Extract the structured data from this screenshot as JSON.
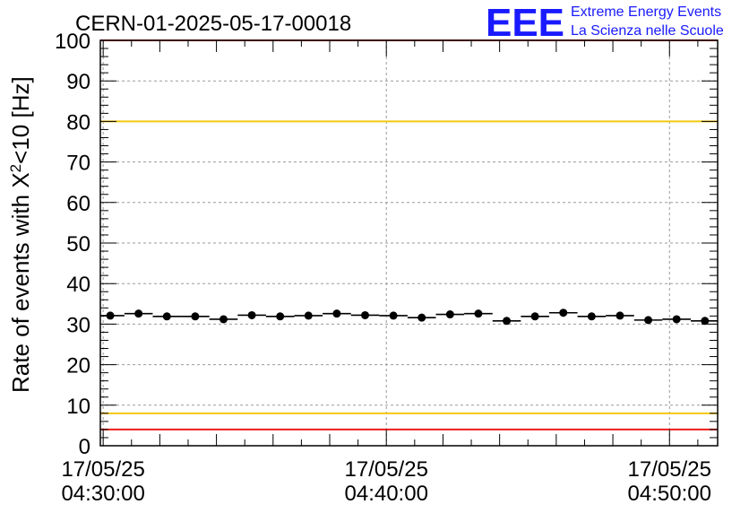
{
  "chart_data": {
    "type": "scatter",
    "title": "CERN-01-2025-05-17-00018",
    "ylabel_main": "Rate of events with X",
    "ylabel_sup": "2",
    "ylabel_tail": "<10 [Hz]",
    "ylim": [
      0,
      100
    ],
    "yticks": [
      "0",
      "10",
      "20",
      "30",
      "40",
      "50",
      "60",
      "70",
      "80",
      "90",
      "100"
    ],
    "xlim_minutes": [
      -0.1,
      21.7
    ],
    "xticks": [
      {
        "minute": 0,
        "date": "17/05/25",
        "time": "04:30:00"
      },
      {
        "minute": 10,
        "date": "17/05/25",
        "time": "04:40:00"
      },
      {
        "minute": 20,
        "date": "17/05/25",
        "time": "04:50:00"
      }
    ],
    "grid": true,
    "reference_lines": [
      {
        "y": 100,
        "color": "#ee1c1c"
      },
      {
        "y": 80,
        "color": "#f2c80f"
      },
      {
        "y": 8,
        "color": "#f2c80f"
      },
      {
        "y": 4,
        "color": "#ee1c1c"
      }
    ],
    "bin_halfwidth_minutes": 0.5,
    "points": [
      {
        "x": 0.25,
        "y": 32.1
      },
      {
        "x": 1.25,
        "y": 32.6
      },
      {
        "x": 2.25,
        "y": 31.9
      },
      {
        "x": 3.25,
        "y": 31.9
      },
      {
        "x": 4.25,
        "y": 31.2
      },
      {
        "x": 5.25,
        "y": 32.2
      },
      {
        "x": 6.25,
        "y": 31.9
      },
      {
        "x": 7.25,
        "y": 32.1
      },
      {
        "x": 8.25,
        "y": 32.6
      },
      {
        "x": 9.25,
        "y": 32.2
      },
      {
        "x": 10.25,
        "y": 32.1
      },
      {
        "x": 11.25,
        "y": 31.6
      },
      {
        "x": 12.25,
        "y": 32.4
      },
      {
        "x": 13.25,
        "y": 32.6
      },
      {
        "x": 14.25,
        "y": 30.8
      },
      {
        "x": 15.25,
        "y": 31.9
      },
      {
        "x": 16.25,
        "y": 32.8
      },
      {
        "x": 17.25,
        "y": 31.9
      },
      {
        "x": 18.25,
        "y": 32.1
      },
      {
        "x": 19.25,
        "y": 31.0
      },
      {
        "x": 20.25,
        "y": 31.2
      },
      {
        "x": 21.25,
        "y": 30.8
      }
    ]
  },
  "logo": {
    "mark": "EEE",
    "line1": "Extreme Energy Events",
    "line2": "La Scienza nelle Scuole",
    "color": "#1a1aff"
  }
}
